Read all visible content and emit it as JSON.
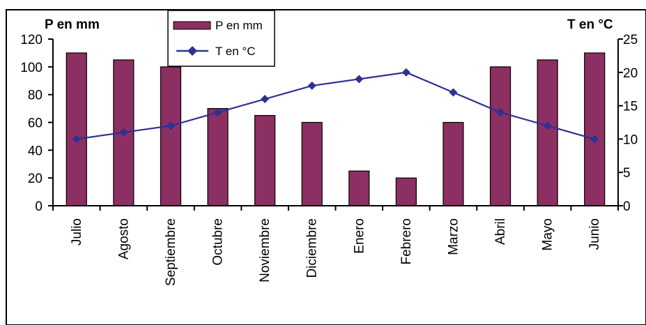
{
  "chart_data": {
    "type": "bar",
    "categories": [
      "Julio",
      "Agosto",
      "Septiembre",
      "Octubre",
      "Noviembre",
      "Diciembre",
      "Enero",
      "Febrero",
      "Marzo",
      "Abril",
      "Mayo",
      "Junio"
    ],
    "series": [
      {
        "name": "P en mm",
        "type": "bar",
        "axis": "left",
        "color": "#8c2f63",
        "values": [
          110,
          105,
          100,
          70,
          65,
          60,
          25,
          20,
          60,
          100,
          105,
          110
        ]
      },
      {
        "name": "T en °C",
        "type": "line",
        "axis": "right",
        "color": "#2e3192",
        "values": [
          10,
          11,
          12,
          14,
          16,
          18,
          19,
          20,
          17,
          14,
          12,
          10
        ]
      }
    ],
    "y_left": {
      "label": "P en mm",
      "range": [
        0,
        120
      ],
      "ticks": [
        "0",
        "20",
        "40",
        "60",
        "80",
        "100",
        "120"
      ]
    },
    "y_right": {
      "label": "T en °C",
      "range": [
        0,
        25
      ],
      "ticks": [
        "0",
        "5",
        "10",
        "15",
        "20",
        "25"
      ]
    },
    "grid": false,
    "legend": {
      "position": "top-center",
      "entries": [
        "P en mm",
        "T en °C"
      ]
    }
  }
}
